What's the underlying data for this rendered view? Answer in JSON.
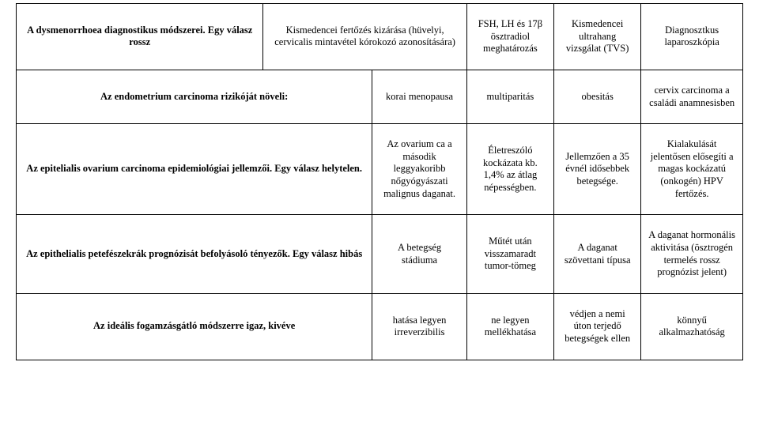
{
  "rows": [
    {
      "q": "A dysmenorrhoea diagnostikus módszerei. Egy válasz rossz",
      "a1": "Kismedencei fertőzés kizárása (hüvelyi, cervicalis mintavétel kórokozó azonosítására)",
      "a2": "FSH, LH és 17β ösztradiol meghatározás",
      "a3": "Kismedencei ultrahang vizsgálat (TVS)",
      "a4": "Diagnosztkus laparoszkópia"
    },
    {
      "q": "Az endometrium carcinoma rizikóját növeli:",
      "a1": "korai menopausa",
      "a2": "multiparitás",
      "a3": "obesitás",
      "a4": "cervix carcinoma a családi anamnesisben"
    },
    {
      "q": "Az epitelialis ovarium carcinoma epidemiológiai jellemzői. Egy válasz helytelen.",
      "a1": "Az ovarium ca a második leggyakoribb nőgyógyászati malignus daganat.",
      "a2": "Életreszóló kockázata kb. 1,4% az átlag népességben.",
      "a3": "Jellemzően a 35 évnél idősebbek betegsége.",
      "a4": "Kialakulását jelentősen elősegíti a magas kockázatú (onkogén) HPV fertőzés."
    },
    {
      "q": "Az epithelialis petefészekrák prognózisát befolyásoló tényezők. Egy válasz hibás",
      "a1": "A betegség stádiuma",
      "a2": "Műtét után visszamaradt tumor-tömeg",
      "a3": "A daganat szövettani típusa",
      "a4": "A daganat hormonális aktivitása (ösztrogén termelés rossz prognózist jelent)"
    },
    {
      "q": "Az ideális fogamzásgátló módszerre igaz, kivéve",
      "a1": "hatása legyen irreverzibilis",
      "a2": "ne legyen mellékhatása",
      "a3": "védjen a nemi úton terjedő betegségek ellen",
      "a4": "könnyű alkalmazhatóság"
    }
  ]
}
